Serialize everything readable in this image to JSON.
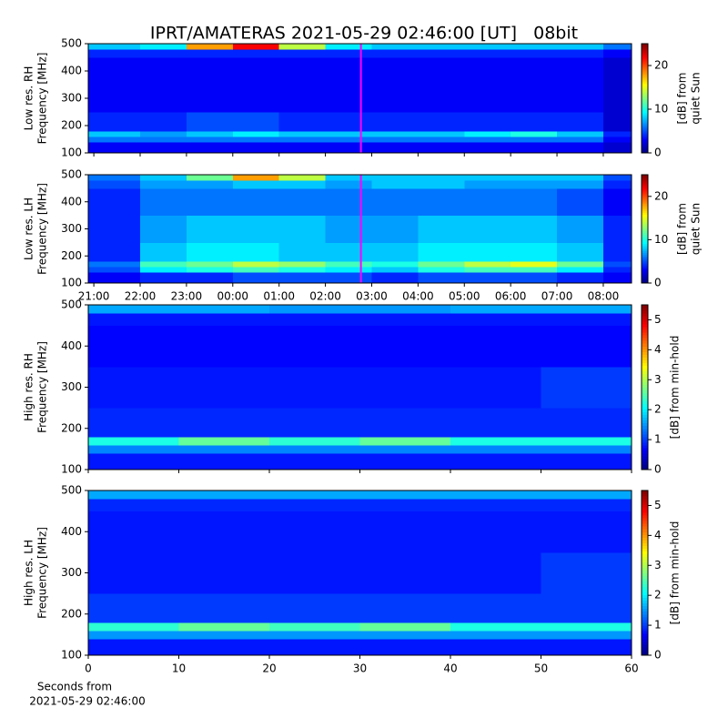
{
  "chart_data": [
    {
      "type": "heatmap",
      "title": "IPRT/AMATERAS 2021-05-29 02:46:00 [UT]   08bit",
      "ylabel": [
        "Low res. RH",
        "Frequency [MHz]"
      ],
      "xlim": [
        20.88,
        32.61
      ],
      "xticks": [
        21,
        22,
        23,
        24,
        25,
        26,
        27,
        28,
        29,
        30,
        31,
        32
      ],
      "xtick_labels": false,
      "ylim": [
        100,
        500
      ],
      "yticks": [
        100,
        200,
        300,
        400,
        500
      ],
      "xbins": [
        20.88,
        22,
        23,
        24,
        25,
        26,
        27,
        28,
        29,
        30,
        31,
        32,
        32.61
      ],
      "ybins": [
        100,
        140,
        160,
        180,
        250,
        350,
        450,
        480,
        500
      ],
      "z": [
        [
          3,
          3,
          3,
          3,
          3,
          3,
          3,
          3,
          3,
          3,
          3,
          2
        ],
        [
          6,
          6,
          6,
          6,
          6,
          6,
          6,
          6,
          6,
          6,
          6,
          3
        ],
        [
          8,
          7,
          8,
          9,
          8,
          8,
          8,
          8,
          9,
          10,
          8,
          4
        ],
        [
          4,
          4,
          5,
          5,
          4,
          4,
          4,
          4,
          4,
          4,
          4,
          2
        ],
        [
          3,
          3,
          3,
          3,
          3,
          3,
          3,
          3,
          3,
          3,
          3,
          2
        ],
        [
          3,
          3,
          3,
          3,
          3,
          3,
          3,
          3,
          3,
          3,
          3,
          2
        ],
        [
          4,
          4,
          4,
          4,
          4,
          4,
          4,
          4,
          4,
          4,
          4,
          3
        ],
        [
          8,
          9,
          18,
          22,
          14,
          9,
          8,
          8,
          8,
          8,
          8,
          6
        ]
      ],
      "marker": {
        "x": 26.767,
        "color": "#ff00ff"
      },
      "colorbar": {
        "label": [
          "[dB] from",
          "quiet Sun"
        ],
        "zlim": [
          0,
          25
        ],
        "ticks": [
          0,
          10,
          20
        ],
        "cmap": "jet"
      }
    },
    {
      "type": "heatmap",
      "ylabel": [
        "Low res. LH",
        "Frequency [MHz]"
      ],
      "xlim": [
        20.88,
        32.61
      ],
      "xticks": [
        {
          "value": 21,
          "label": "21:00"
        },
        {
          "value": 22,
          "label": "22:00"
        },
        {
          "value": 23,
          "label": "23:00"
        },
        {
          "value": 24,
          "label": "00:00"
        },
        {
          "value": 25,
          "label": "01:00"
        },
        {
          "value": 26,
          "label": "02:00"
        },
        {
          "value": 27,
          "label": "03:00"
        },
        {
          "value": 28,
          "label": "04:00"
        },
        {
          "value": 29,
          "label": "05:00"
        },
        {
          "value": 30,
          "label": "06:00"
        },
        {
          "value": 31,
          "label": "07:00"
        },
        {
          "value": 32,
          "label": "08:00"
        }
      ],
      "xtick_labels": true,
      "ylim": [
        100,
        500
      ],
      "yticks": [
        100,
        200,
        300,
        400,
        500
      ],
      "xbins": [
        20.88,
        22,
        23,
        24,
        25,
        26,
        27,
        28,
        29,
        30,
        31,
        32,
        32.61
      ],
      "ybins": [
        100,
        140,
        160,
        180,
        250,
        350,
        450,
        480,
        500
      ],
      "z": [
        [
          3,
          4,
          4,
          5,
          5,
          5,
          4,
          5,
          5,
          5,
          4,
          3
        ],
        [
          5,
          9,
          10,
          11,
          10,
          9,
          8,
          10,
          11,
          11,
          9,
          4
        ],
        [
          6,
          11,
          12,
          14,
          13,
          11,
          10,
          12,
          14,
          15,
          12,
          5
        ],
        [
          4,
          8,
          9,
          9,
          8,
          8,
          8,
          9,
          9,
          9,
          8,
          4
        ],
        [
          4,
          7,
          8,
          8,
          8,
          7,
          7,
          8,
          8,
          8,
          7,
          4
        ],
        [
          4,
          6,
          6,
          6,
          6,
          6,
          6,
          6,
          6,
          6,
          5,
          3
        ],
        [
          5,
          7,
          7,
          8,
          8,
          7,
          8,
          8,
          7,
          7,
          7,
          4
        ],
        [
          6,
          8,
          12,
          18,
          14,
          8,
          8,
          8,
          8,
          8,
          8,
          5
        ]
      ],
      "marker": {
        "x": 26.767,
        "color": "#ff00ff"
      },
      "colorbar": {
        "label": [
          "[dB] from",
          "quiet Sun"
        ],
        "zlim": [
          0,
          25
        ],
        "ticks": [
          0,
          10,
          20
        ],
        "cmap": "jet"
      }
    },
    {
      "type": "heatmap",
      "ylabel": [
        "High res. RH",
        "Frequency [MHz]"
      ],
      "xlim": [
        0,
        60
      ],
      "xticks": [
        0,
        10,
        20,
        30,
        40,
        50,
        60
      ],
      "xtick_labels": false,
      "ylim": [
        100,
        500
      ],
      "yticks": [
        100,
        200,
        300,
        400,
        500
      ],
      "xbins": [
        0,
        10,
        20,
        30,
        40,
        50,
        60
      ],
      "ybins": [
        100,
        140,
        160,
        180,
        250,
        350,
        450,
        480,
        500
      ],
      "z": [
        [
          0.8,
          0.8,
          0.8,
          0.8,
          0.8,
          0.8
        ],
        [
          1.4,
          1.4,
          1.4,
          1.4,
          1.4,
          1.4
        ],
        [
          2.2,
          2.6,
          2.3,
          2.6,
          2.2,
          2.2
        ],
        [
          0.9,
          0.9,
          0.9,
          0.9,
          0.9,
          0.9
        ],
        [
          0.8,
          0.8,
          0.8,
          0.8,
          0.8,
          1.0
        ],
        [
          0.7,
          0.7,
          0.7,
          0.7,
          0.7,
          0.7
        ],
        [
          0.8,
          0.8,
          0.8,
          0.8,
          0.8,
          0.8
        ],
        [
          1.6,
          1.6,
          1.5,
          1.5,
          1.6,
          1.6
        ]
      ],
      "colorbar": {
        "label": [
          "[dB] from min-hold"
        ],
        "zlim": [
          0,
          5.5
        ],
        "ticks": [
          0,
          1,
          2,
          3,
          4,
          5
        ],
        "cmap": "jet"
      }
    },
    {
      "type": "heatmap",
      "ylabel": [
        "High res. LH",
        "Frequency [MHz]"
      ],
      "xlabel": [
        "Seconds from",
        "2021-05-29 02:46:00"
      ],
      "xlim": [
        0,
        60
      ],
      "xticks": [
        0,
        10,
        20,
        30,
        40,
        50,
        60
      ],
      "xtick_labels": true,
      "ylim": [
        100,
        500
      ],
      "yticks": [
        100,
        200,
        300,
        400,
        500
      ],
      "xbins": [
        0,
        10,
        20,
        30,
        40,
        50,
        60
      ],
      "ybins": [
        100,
        140,
        160,
        180,
        250,
        350,
        450,
        480,
        500
      ],
      "z": [
        [
          0.8,
          0.8,
          0.8,
          0.8,
          0.8,
          0.8
        ],
        [
          1.5,
          1.5,
          1.5,
          1.5,
          1.5,
          1.5
        ],
        [
          2.3,
          2.6,
          2.4,
          2.6,
          2.2,
          2.2
        ],
        [
          1.0,
          1.0,
          1.0,
          1.0,
          1.0,
          1.0
        ],
        [
          0.8,
          0.8,
          0.8,
          0.8,
          0.8,
          1.0
        ],
        [
          0.8,
          0.8,
          0.8,
          0.8,
          0.8,
          0.8
        ],
        [
          0.9,
          0.9,
          0.9,
          0.9,
          0.9,
          0.9
        ],
        [
          1.6,
          1.6,
          1.6,
          1.6,
          1.6,
          1.6
        ]
      ],
      "colorbar": {
        "label": [
          "[dB] from min-hold"
        ],
        "zlim": [
          0,
          5.5
        ],
        "ticks": [
          0,
          1,
          2,
          3,
          4,
          5
        ],
        "cmap": "jet"
      }
    }
  ]
}
